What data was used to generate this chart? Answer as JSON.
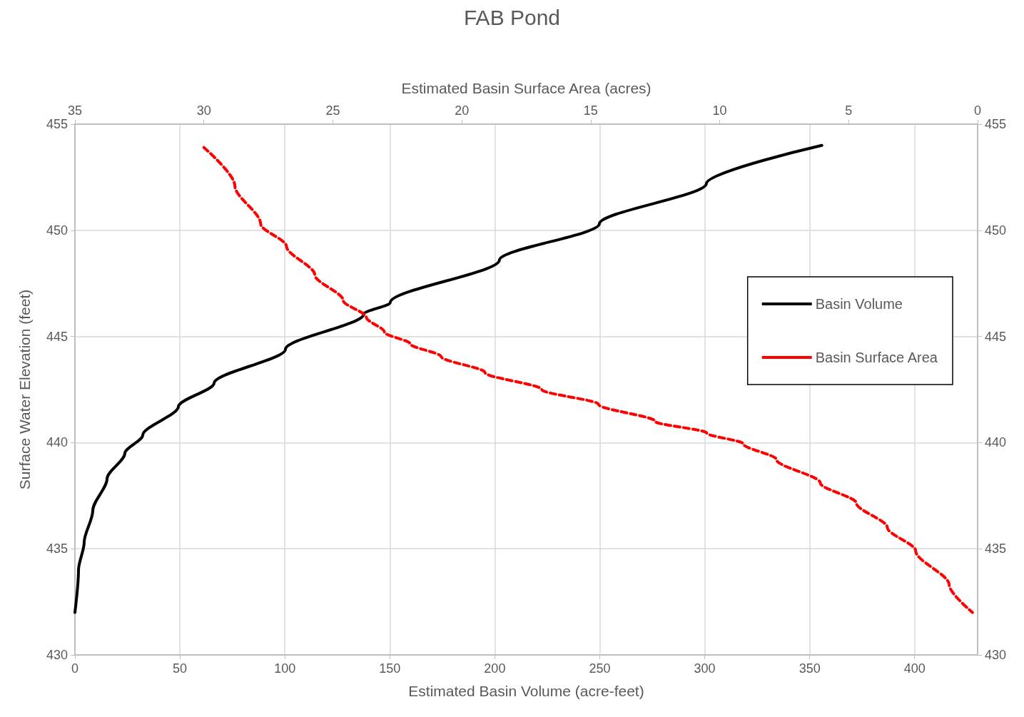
{
  "chart_data": {
    "type": "line",
    "title": "FAB Pond",
    "xlabel": "Estimated Basin Volume (acre-feet)",
    "x2label": "Estimated Basin Surface Area (acres)",
    "ylabel": "Surface Water Elevation (feet)",
    "xlim": [
      0,
      430
    ],
    "xticks": [
      0,
      50,
      100,
      150,
      200,
      250,
      300,
      350,
      400
    ],
    "x2lim": [
      35,
      0
    ],
    "x2ticks": [
      35,
      30,
      25,
      20,
      15,
      10,
      5,
      0
    ],
    "ylim": [
      430,
      455
    ],
    "yticks": [
      430,
      435,
      440,
      445,
      450,
      455
    ],
    "y2lim": [
      430,
      455
    ],
    "y2ticks": [
      430,
      435,
      440,
      445,
      450,
      455
    ],
    "grid": true,
    "legend": "right",
    "marker": "none",
    "series": [
      {
        "name": "Basin Volume",
        "color": "#000000",
        "line_style": "solid",
        "x": [
          0,
          1.7,
          4.4,
          8.5,
          15.3,
          23.8,
          32.3,
          49.3,
          66.3,
          100.3,
          137.6,
          150.2,
          202.2,
          249.8,
          300.8,
          355.8
        ],
        "values": [
          432.0,
          434.0,
          435.3,
          436.8,
          438.3,
          439.5,
          440.35,
          441.7,
          442.8,
          444.4,
          446.05,
          446.6,
          448.6,
          450.3,
          452.2,
          454.0
        ]
      },
      {
        "name": "Basin Surface Area",
        "color": "#ff0000",
        "line_style": "dashed",
        "axis": "x2",
        "x": [
          30.0,
          28.8,
          27.8,
          26.8,
          25.7,
          24.6,
          23.7,
          23.0,
          22.0,
          20.8,
          19.1,
          16.9,
          14.7,
          12.5,
          10.5,
          9.1,
          7.8,
          6.1,
          4.7,
          3.5,
          2.4,
          1.1,
          0.2
        ],
        "values": [
          453.9,
          452.1,
          450.3,
          449.25,
          447.9,
          446.7,
          445.9,
          445.2,
          444.65,
          444.05,
          443.3,
          442.5,
          441.8,
          441.0,
          440.45,
          439.95,
          439.2,
          438.1,
          437.15,
          436.0,
          434.9,
          433.3,
          432.0
        ]
      }
    ]
  }
}
